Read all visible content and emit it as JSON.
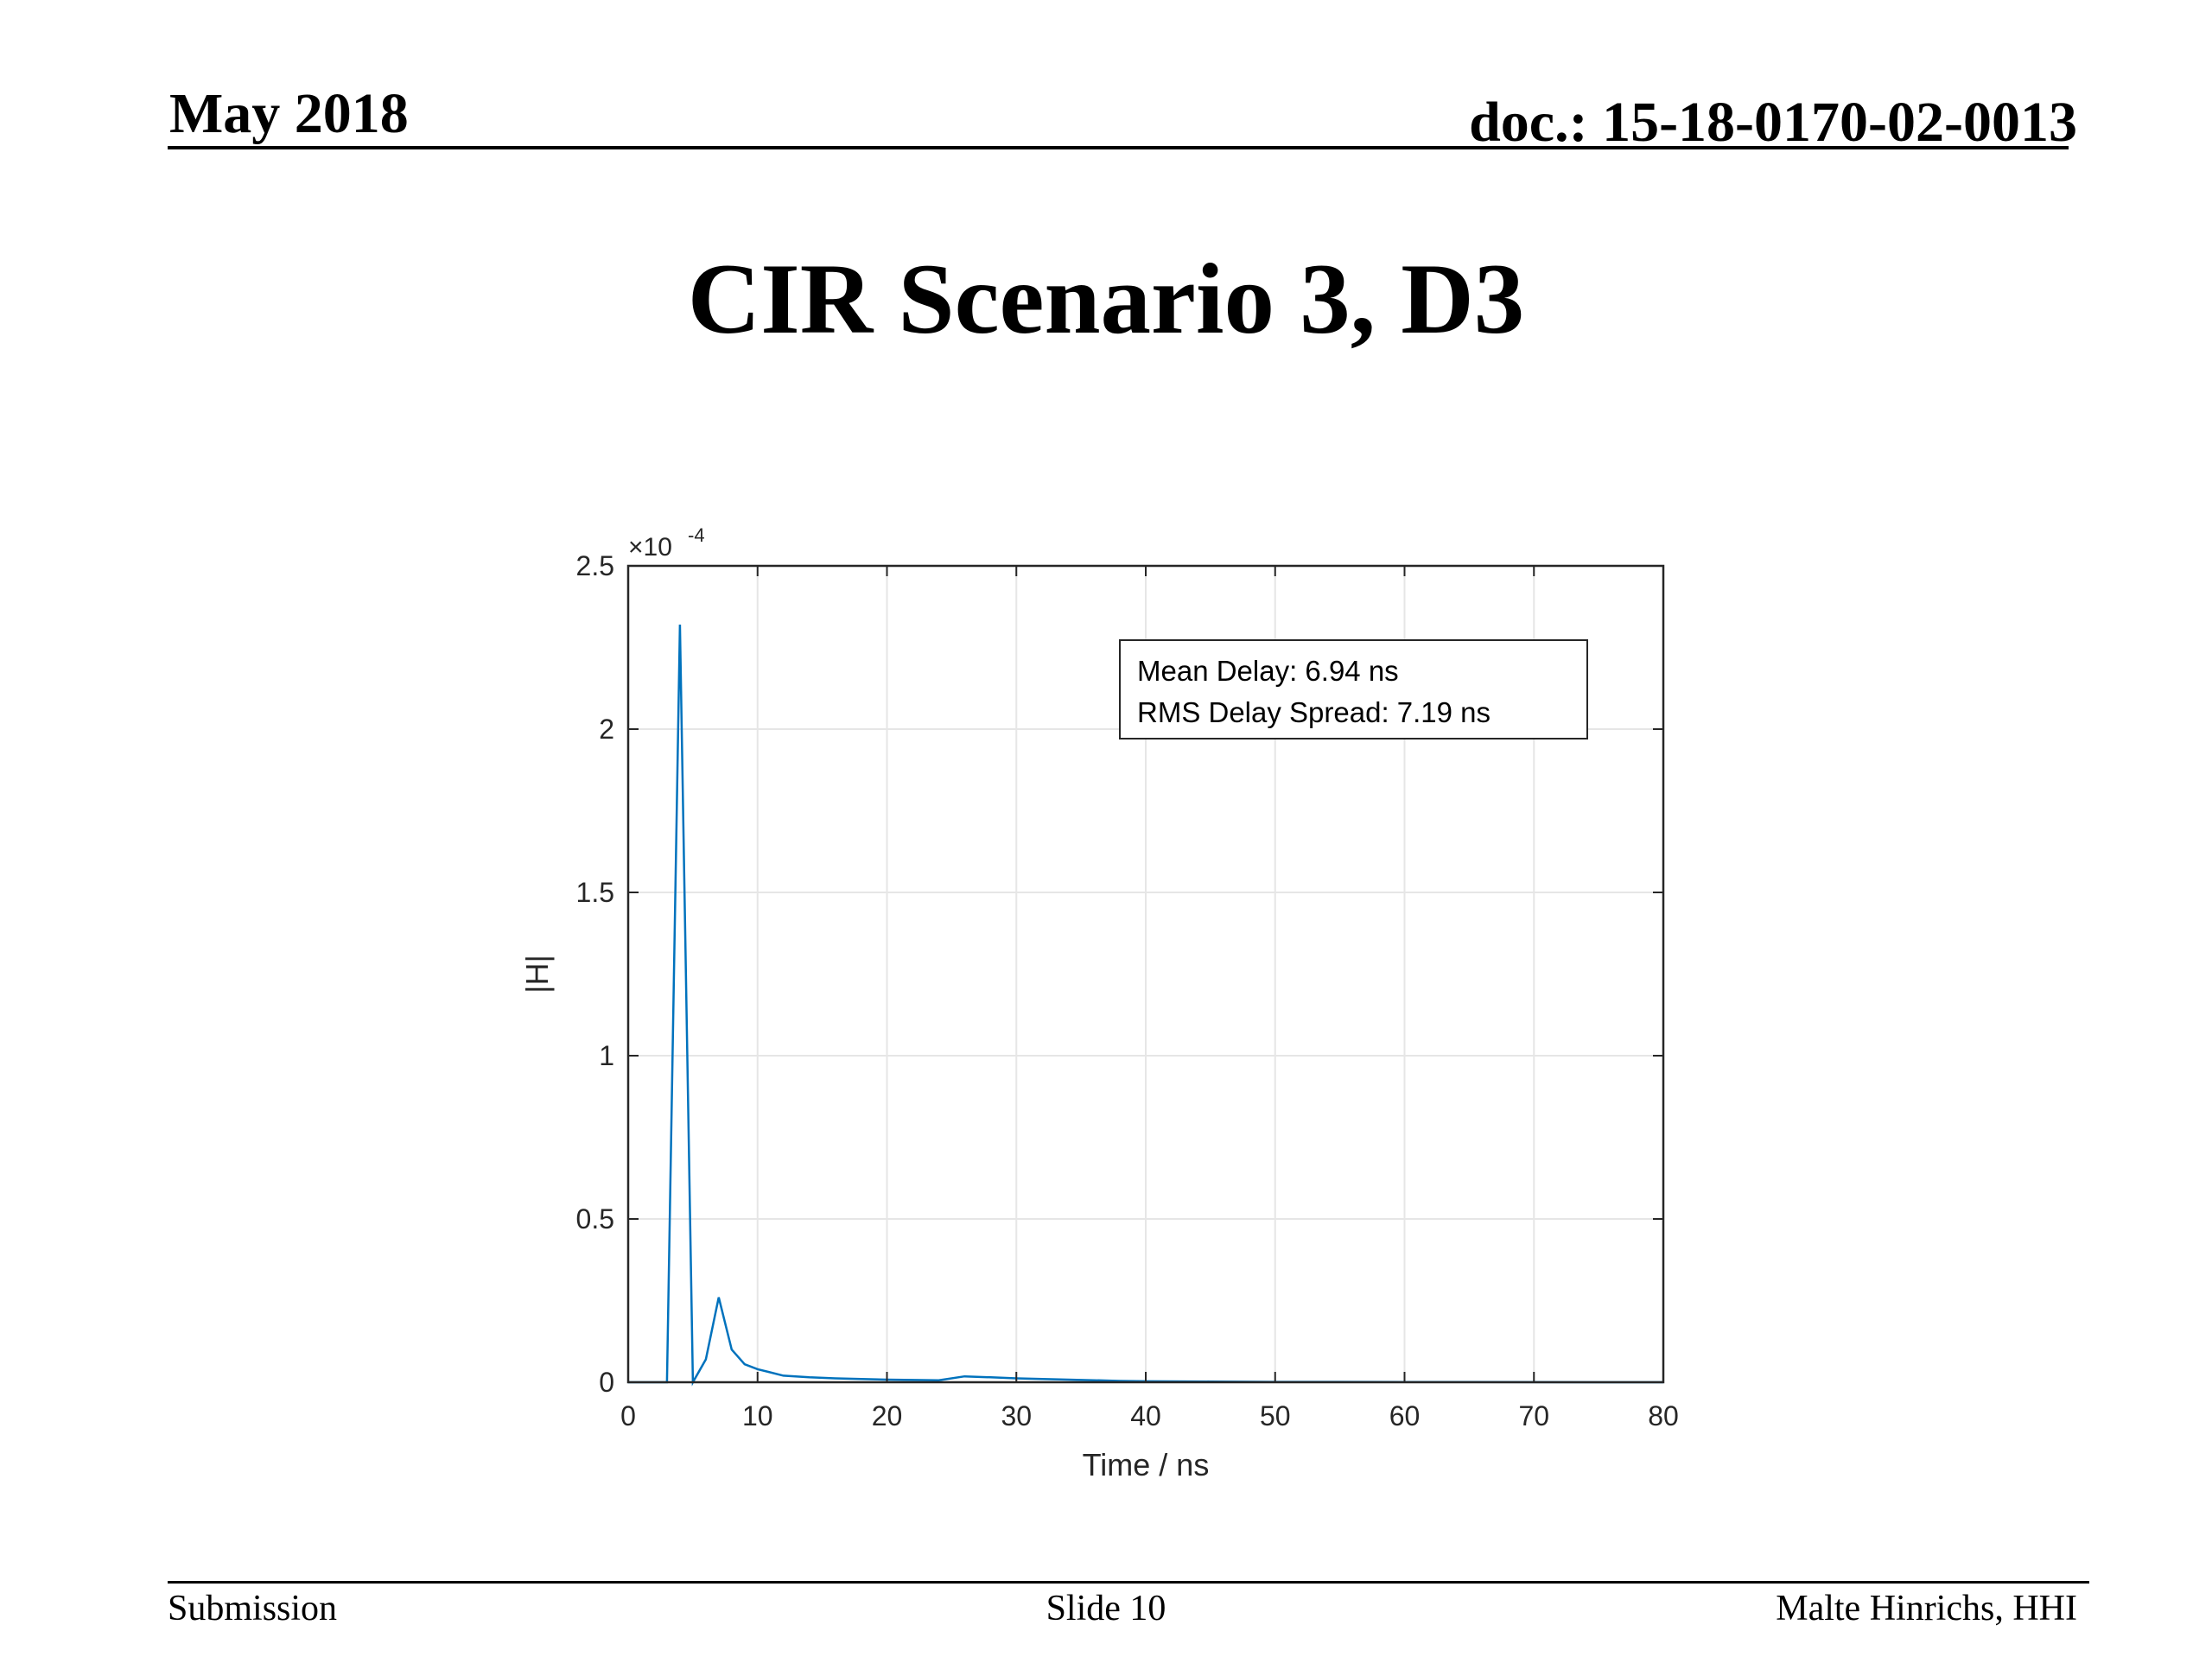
{
  "header": {
    "date": "May 2018",
    "doc_id": "doc.: 15-18-0170-02-0013"
  },
  "slide_title": "CIR Scenario 3, D3",
  "footer": {
    "left": "Submission",
    "center": "Slide 10",
    "right": "Malte Hinrichs, HHI"
  },
  "colors": {
    "series": "#0072bd",
    "grid": "#e6e6e6",
    "axis": "#262626"
  },
  "chart_data": {
    "type": "line",
    "title": "",
    "xlabel": "Time / ns",
    "ylabel": "|H|",
    "y_exponent_label": "×10",
    "y_exponent_power": "-4",
    "xlim": [
      0,
      80
    ],
    "ylim": [
      0,
      2.5
    ],
    "xticks": [
      0,
      10,
      20,
      30,
      40,
      50,
      60,
      70,
      80
    ],
    "yticks": [
      0,
      0.5,
      1,
      1.5,
      2,
      2.5
    ],
    "ytick_labels": [
      "0",
      "0.5",
      "1",
      "1.5",
      "2",
      "2.5"
    ],
    "grid": true,
    "annotation": {
      "lines": [
        "Mean Delay: 6.94 ns",
        "RMS Delay Spread: 7.19 ns"
      ],
      "placement": "top-right"
    },
    "series": [
      {
        "x": [
          0,
          1,
          2,
          3,
          4,
          5,
          6,
          7,
          8,
          9,
          10,
          12,
          14,
          16,
          18,
          20,
          22,
          24,
          26,
          28,
          30,
          32,
          34,
          36,
          38,
          40,
          45,
          50,
          55,
          60,
          65,
          70,
          75,
          80
        ],
        "y": [
          0,
          0,
          0,
          0,
          2.32,
          0.0,
          0.07,
          0.26,
          0.1,
          0.055,
          0.04,
          0.02,
          0.015,
          0.012,
          0.01,
          0.008,
          0.007,
          0.006,
          0.018,
          0.015,
          0.012,
          0.01,
          0.008,
          0.006,
          0.004,
          0.003,
          0.002,
          0.001,
          0.001,
          0.0005,
          0.0005,
          0.0002,
          0,
          0
        ]
      }
    ]
  }
}
